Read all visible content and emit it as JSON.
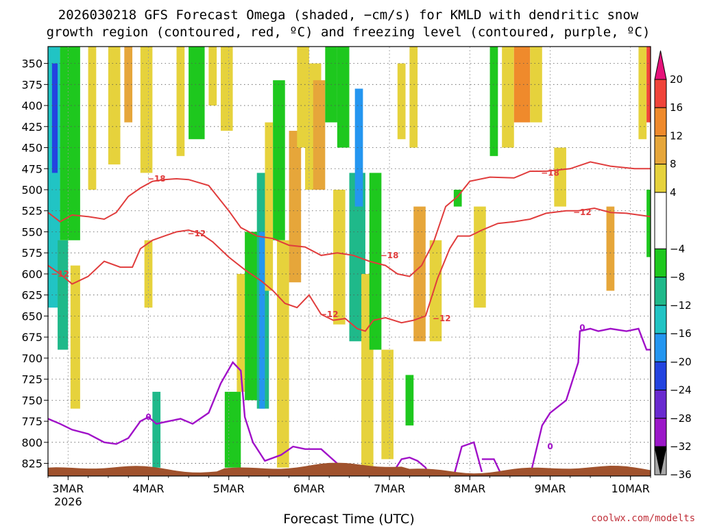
{
  "chart_data": {
    "type": "heatmap",
    "title_line1": "2026030218 GFS Forecast Omega (shaded, −cm/s) for KMLD with dendritic snow",
    "title_line2": "growth region (contoured, red, ºC) and freezing level (contoured, purple, ºC)",
    "xlabel": "Forecast Time (UTC)",
    "ylabel": "",
    "credit": "coolwx.com/modelts",
    "y_axis": {
      "ticks": [
        "350",
        "375",
        "400",
        "425",
        "450",
        "475",
        "500",
        "525",
        "550",
        "575",
        "600",
        "625",
        "650",
        "675",
        "700",
        "725",
        "750",
        "775",
        "800",
        "825"
      ],
      "range": [
        840,
        330
      ]
    },
    "x_axis": {
      "range": [
        0,
        7.5
      ],
      "ticks": [
        {
          "day": 0.25,
          "label": "3MAR",
          "sub": "2026"
        },
        {
          "day": 1.25,
          "label": "4MAR",
          "sub": ""
        },
        {
          "day": 2.25,
          "label": "5MAR",
          "sub": ""
        },
        {
          "day": 3.25,
          "label": "6MAR",
          "sub": ""
        },
        {
          "day": 4.25,
          "label": "7MAR",
          "sub": ""
        },
        {
          "day": 5.25,
          "label": "8MAR",
          "sub": ""
        },
        {
          "day": 6.25,
          "label": "9MAR",
          "sub": ""
        },
        {
          "day": 7.25,
          "label": "10MAR",
          "sub": ""
        }
      ]
    },
    "colorbar": {
      "labels": [
        "20",
        "16",
        "12",
        "8",
        "4",
        "−4",
        "−8",
        "−12",
        "−16",
        "−20",
        "−24",
        "−28",
        "−32",
        "−36"
      ],
      "bins": [
        {
          "from": 16,
          "to": 20,
          "color": "#f0443a"
        },
        {
          "from": 12,
          "to": 16,
          "color": "#ef8a2c"
        },
        {
          "from": 8,
          "to": 12,
          "color": "#e6a63a"
        },
        {
          "from": 4,
          "to": 8,
          "color": "#e6d23c"
        },
        {
          "from": -4,
          "to": 4,
          "color": "#ffffff"
        },
        {
          "from": -8,
          "to": -4,
          "color": "#1ec81e"
        },
        {
          "from": -12,
          "to": -8,
          "color": "#1fb98a"
        },
        {
          "from": -16,
          "to": -12,
          "color": "#21c4c4"
        },
        {
          "from": -20,
          "to": -16,
          "color": "#2496f0"
        },
        {
          "from": -24,
          "to": -20,
          "color": "#2344e0"
        },
        {
          "from": -28,
          "to": -24,
          "color": "#6a2ad0"
        },
        {
          "from": -32,
          "to": -28,
          "color": "#9b17c8"
        },
        {
          "from": -36,
          "to": -32,
          "color": "#a8a8a8"
        }
      ],
      "top_color": "#e6127a",
      "bottom_color": "#000000"
    },
    "omega_regions": [
      {
        "t": [
          0.0,
          0.15
        ],
        "p": [
          330,
          640
        ],
        "value": -14
      },
      {
        "t": [
          0.05,
          0.12
        ],
        "p": [
          350,
          480
        ],
        "value": -22
      },
      {
        "t": [
          0.15,
          0.4
        ],
        "p": [
          330,
          560
        ],
        "value": -8
      },
      {
        "t": [
          0.12,
          0.25
        ],
        "p": [
          560,
          690
        ],
        "value": -10
      },
      {
        "t": [
          0.28,
          0.4
        ],
        "p": [
          590,
          760
        ],
        "value": 5
      },
      {
        "t": [
          0.5,
          0.6
        ],
        "p": [
          330,
          500
        ],
        "value": 6
      },
      {
        "t": [
          0.75,
          0.9
        ],
        "p": [
          330,
          470
        ],
        "value": 5
      },
      {
        "t": [
          0.95,
          1.05
        ],
        "p": [
          330,
          420
        ],
        "value": 10
      },
      {
        "t": [
          1.15,
          1.3
        ],
        "p": [
          330,
          480
        ],
        "value": 6
      },
      {
        "t": [
          1.2,
          1.3
        ],
        "p": [
          560,
          640
        ],
        "value": 5
      },
      {
        "t": [
          1.3,
          1.4
        ],
        "p": [
          740,
          830
        ],
        "value": -12
      },
      {
        "t": [
          1.6,
          1.7
        ],
        "p": [
          330,
          460
        ],
        "value": 5
      },
      {
        "t": [
          1.75,
          1.95
        ],
        "p": [
          330,
          440
        ],
        "value": -6
      },
      {
        "t": [
          2.0,
          2.1
        ],
        "p": [
          330,
          400
        ],
        "value": 5
      },
      {
        "t": [
          2.15,
          2.3
        ],
        "p": [
          330,
          430
        ],
        "value": 5
      },
      {
        "t": [
          2.2,
          2.4
        ],
        "p": [
          740,
          830
        ],
        "value": -6
      },
      {
        "t": [
          2.35,
          2.45
        ],
        "p": [
          600,
          740
        ],
        "value": 5
      },
      {
        "t": [
          2.45,
          2.65
        ],
        "p": [
          550,
          750
        ],
        "value": -7
      },
      {
        "t": [
          2.6,
          2.75
        ],
        "p": [
          480,
          760
        ],
        "value": -10
      },
      {
        "t": [
          2.63,
          2.7
        ],
        "p": [
          550,
          760
        ],
        "value": -18
      },
      {
        "t": [
          2.7,
          2.8
        ],
        "p": [
          420,
          620
        ],
        "value": 5
      },
      {
        "t": [
          2.8,
          2.95
        ],
        "p": [
          370,
          560
        ],
        "value": -6
      },
      {
        "t": [
          2.85,
          3.0
        ],
        "p": [
          560,
          830
        ],
        "value": 6
      },
      {
        "t": [
          3.0,
          3.15
        ],
        "p": [
          430,
          610
        ],
        "value": 9
      },
      {
        "t": [
          3.1,
          3.25
        ],
        "p": [
          330,
          450
        ],
        "value": 5
      },
      {
        "t": [
          3.2,
          3.4
        ],
        "p": [
          350,
          500
        ],
        "value": 5
      },
      {
        "t": [
          3.3,
          3.45
        ],
        "p": [
          370,
          500
        ],
        "value": 10
      },
      {
        "t": [
          3.45,
          3.6
        ],
        "p": [
          330,
          420
        ],
        "value": -7
      },
      {
        "t": [
          3.55,
          3.7
        ],
        "p": [
          500,
          660
        ],
        "value": 6
      },
      {
        "t": [
          3.6,
          3.75
        ],
        "p": [
          330,
          450
        ],
        "value": -7
      },
      {
        "t": [
          3.75,
          3.95
        ],
        "p": [
          480,
          680
        ],
        "value": -9
      },
      {
        "t": [
          3.82,
          3.92
        ],
        "p": [
          380,
          520
        ],
        "value": -17
      },
      {
        "t": [
          3.9,
          4.05
        ],
        "p": [
          600,
          830
        ],
        "value": 5
      },
      {
        "t": [
          4.0,
          4.15
        ],
        "p": [
          480,
          690
        ],
        "value": -8
      },
      {
        "t": [
          4.15,
          4.3
        ],
        "p": [
          690,
          820
        ],
        "value": 6
      },
      {
        "t": [
          4.35,
          4.45
        ],
        "p": [
          350,
          440
        ],
        "value": 5
      },
      {
        "t": [
          4.45,
          4.55
        ],
        "p": [
          720,
          780
        ],
        "value": -7
      },
      {
        "t": [
          4.5,
          4.6
        ],
        "p": [
          330,
          450
        ],
        "value": 5
      },
      {
        "t": [
          4.55,
          4.7
        ],
        "p": [
          520,
          680
        ],
        "value": 9
      },
      {
        "t": [
          4.75,
          4.9
        ],
        "p": [
          560,
          680
        ],
        "value": 5
      },
      {
        "t": [
          5.05,
          5.15
        ],
        "p": [
          500,
          520
        ],
        "value": -6
      },
      {
        "t": [
          5.3,
          5.45
        ],
        "p": [
          520,
          640
        ],
        "value": 5
      },
      {
        "t": [
          5.5,
          5.6
        ],
        "p": [
          330,
          460
        ],
        "value": -7
      },
      {
        "t": [
          5.65,
          5.8
        ],
        "p": [
          330,
          450
        ],
        "value": 5
      },
      {
        "t": [
          5.8,
          6.0
        ],
        "p": [
          330,
          420
        ],
        "value": 12
      },
      {
        "t": [
          6.0,
          6.15
        ],
        "p": [
          330,
          420
        ],
        "value": 5
      },
      {
        "t": [
          6.3,
          6.45
        ],
        "p": [
          450,
          520
        ],
        "value": 5
      },
      {
        "t": [
          6.95,
          7.05
        ],
        "p": [
          520,
          620
        ],
        "value": 10
      },
      {
        "t": [
          7.35,
          7.45
        ],
        "p": [
          330,
          440
        ],
        "value": 5
      },
      {
        "t": [
          7.45,
          7.5
        ],
        "p": [
          330,
          420
        ],
        "value": 18
      },
      {
        "t": [
          7.45,
          7.5
        ],
        "p": [
          500,
          580
        ],
        "value": -6
      }
    ],
    "dgz_contours": [
      {
        "label": "−18",
        "color": "#e03c3c",
        "label_at": [
          1.35,
          487
        ],
        "points": [
          [
            0.0,
            527
          ],
          [
            0.15,
            538
          ],
          [
            0.3,
            530
          ],
          [
            0.5,
            532
          ],
          [
            0.7,
            535
          ],
          [
            0.85,
            527
          ],
          [
            1.0,
            508
          ],
          [
            1.15,
            498
          ],
          [
            1.3,
            490
          ],
          [
            1.45,
            488
          ],
          [
            1.6,
            487
          ],
          [
            1.75,
            488
          ],
          [
            2.0,
            495
          ],
          [
            2.25,
            525
          ],
          [
            2.4,
            545
          ],
          [
            2.6,
            555
          ],
          [
            2.8,
            558
          ],
          [
            3.0,
            566
          ],
          [
            3.2,
            568
          ],
          [
            3.4,
            578
          ],
          [
            3.6,
            575
          ],
          [
            3.8,
            578
          ],
          [
            4.0,
            585
          ],
          [
            4.2,
            590
          ],
          [
            4.35,
            600
          ],
          [
            4.5,
            603
          ],
          [
            4.65,
            590
          ],
          [
            4.8,
            562
          ],
          [
            4.95,
            520
          ],
          [
            5.1,
            508
          ],
          [
            5.25,
            490
          ],
          [
            5.5,
            485
          ],
          [
            5.8,
            486
          ],
          [
            6.0,
            478
          ],
          [
            6.2,
            478
          ],
          [
            6.5,
            475
          ],
          [
            6.75,
            467
          ],
          [
            7.0,
            472
          ],
          [
            7.3,
            475
          ],
          [
            7.5,
            475
          ]
        ]
      },
      {
        "label": "−12",
        "color": "#e03c3c",
        "label_at": [
          1.85,
          552
        ],
        "points": [
          [
            0.0,
            590
          ],
          [
            0.15,
            600
          ],
          [
            0.3,
            612
          ],
          [
            0.5,
            603
          ],
          [
            0.7,
            585
          ],
          [
            0.9,
            592
          ],
          [
            1.05,
            592
          ],
          [
            1.15,
            570
          ],
          [
            1.3,
            560
          ],
          [
            1.45,
            555
          ],
          [
            1.6,
            550
          ],
          [
            1.75,
            548
          ],
          [
            1.9,
            552
          ],
          [
            2.05,
            562
          ],
          [
            2.25,
            580
          ],
          [
            2.45,
            595
          ],
          [
            2.65,
            608
          ],
          [
            2.8,
            620
          ],
          [
            2.95,
            635
          ],
          [
            3.1,
            640
          ],
          [
            3.25,
            625
          ],
          [
            3.4,
            648
          ],
          [
            3.55,
            655
          ],
          [
            3.7,
            653
          ],
          [
            3.85,
            665
          ],
          [
            3.95,
            668
          ],
          [
            4.05,
            655
          ],
          [
            4.2,
            652
          ],
          [
            4.4,
            658
          ],
          [
            4.55,
            655
          ],
          [
            4.7,
            650
          ],
          [
            4.85,
            605
          ],
          [
            5.0,
            570
          ],
          [
            5.1,
            555
          ],
          [
            5.25,
            555
          ],
          [
            5.4,
            548
          ],
          [
            5.6,
            540
          ],
          [
            5.8,
            538
          ],
          [
            6.0,
            535
          ],
          [
            6.2,
            528
          ],
          [
            6.45,
            525
          ],
          [
            6.6,
            525
          ],
          [
            6.8,
            522
          ],
          [
            7.0,
            527
          ],
          [
            7.2,
            528
          ],
          [
            7.5,
            532
          ]
        ]
      }
    ],
    "dgz_extra_labels": [
      {
        "text": "−12",
        "at": [
          0.15,
          600
        ]
      },
      {
        "text": "−18",
        "at": [
          6.25,
          480
        ]
      },
      {
        "text": "−18",
        "at": [
          4.25,
          578
        ]
      },
      {
        "text": "−12",
        "at": [
          3.5,
          648
        ]
      },
      {
        "text": "−12",
        "at": [
          4.9,
          653
        ]
      },
      {
        "text": "−12",
        "at": [
          6.65,
          527
        ]
      }
    ],
    "freezing_contour": {
      "label": "0",
      "color": "#a010c8",
      "label_at": [
        1.25,
        770
      ],
      "points": [
        [
          0.0,
          772
        ],
        [
          0.15,
          778
        ],
        [
          0.3,
          785
        ],
        [
          0.5,
          790
        ],
        [
          0.7,
          800
        ],
        [
          0.85,
          802
        ],
        [
          1.0,
          795
        ],
        [
          1.15,
          775
        ],
        [
          1.25,
          770
        ],
        [
          1.35,
          778
        ],
        [
          1.5,
          775
        ],
        [
          1.65,
          772
        ],
        [
          1.8,
          778
        ],
        [
          2.0,
          765
        ],
        [
          2.15,
          730
        ],
        [
          2.3,
          705
        ],
        [
          2.4,
          715
        ],
        [
          2.45,
          770
        ],
        [
          2.55,
          800
        ],
        [
          2.7,
          822
        ],
        [
          2.9,
          815
        ],
        [
          3.05,
          805
        ],
        [
          3.2,
          808
        ],
        [
          3.4,
          808
        ],
        [
          3.6,
          825
        ]
      ]
    },
    "freezing_extra": [
      [
        [
          4.3,
          835
        ],
        [
          4.4,
          820
        ],
        [
          4.5,
          818
        ],
        [
          4.6,
          822
        ],
        [
          4.7,
          830
        ],
        [
          4.75,
          840
        ]
      ],
      [
        [
          5.05,
          840
        ],
        [
          5.15,
          805
        ],
        [
          5.3,
          800
        ],
        [
          5.4,
          835
        ]
      ],
      [
        [
          5.4,
          820
        ],
        [
          5.55,
          820
        ],
        [
          5.65,
          840
        ]
      ],
      [
        [
          6.0,
          840
        ],
        [
          6.1,
          800
        ],
        [
          6.15,
          780
        ],
        [
          6.25,
          765
        ],
        [
          6.45,
          750
        ],
        [
          6.6,
          705
        ],
        [
          6.62,
          668
        ],
        [
          6.75,
          665
        ],
        [
          6.85,
          668
        ],
        [
          7.0,
          665
        ],
        [
          7.2,
          668
        ],
        [
          7.35,
          665
        ],
        [
          7.45,
          690
        ],
        [
          7.5,
          690
        ]
      ]
    ],
    "freezing_labels": [
      {
        "text": "0",
        "at": [
          6.25,
          805
        ]
      },
      {
        "text": "0",
        "at": [
          6.65,
          664
        ]
      }
    ]
  }
}
